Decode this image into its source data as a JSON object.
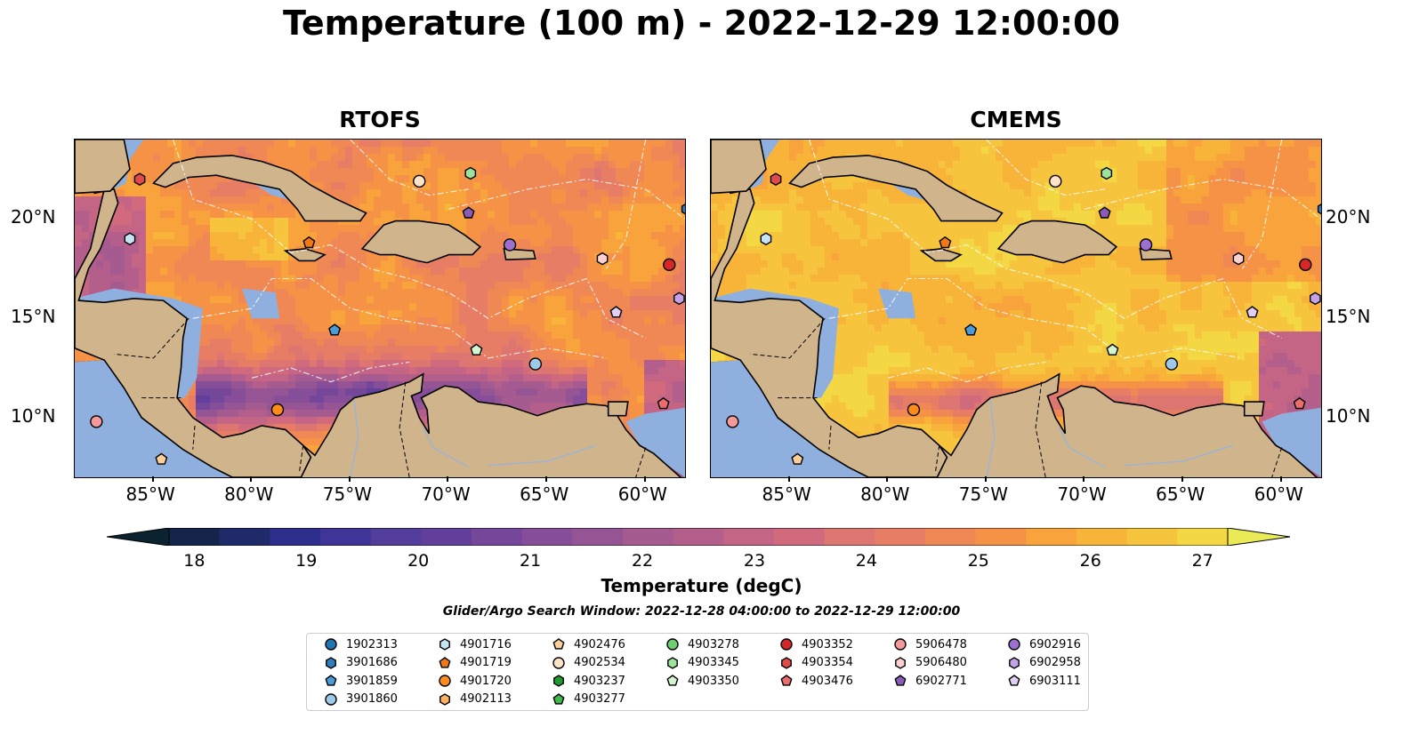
{
  "title": "Temperature (100 m) - 2022-12-29 12:00:00",
  "panels": [
    {
      "title": "RTOFS",
      "model": "rtofs"
    },
    {
      "title": "CMEMS",
      "model": "cmems"
    }
  ],
  "lon_ticks": [
    "85°W",
    "80°W",
    "75°W",
    "70°W",
    "65°W",
    "60°W"
  ],
  "lon_values": [
    -85,
    -80,
    -75,
    -70,
    -65,
    -60
  ],
  "lat_ticks": [
    "20°N",
    "15°N",
    "10°N"
  ],
  "lat_values": [
    20,
    15,
    10
  ],
  "extent": {
    "lon": [
      -89,
      -58
    ],
    "lat": [
      7,
      24
    ]
  },
  "colorbar": {
    "label": "Temperature (degC)",
    "ticks": [
      "18",
      "19",
      "20",
      "21",
      "22",
      "23",
      "24",
      "25",
      "26",
      "27"
    ],
    "min": 18,
    "max": 27,
    "extend": "both",
    "colors": [
      "#0b2231",
      "#14244a",
      "#1f2a6a",
      "#2e2f8d",
      "#3f3598",
      "#523d9c",
      "#623f9b",
      "#74479a",
      "#864e98",
      "#955493",
      "#a55a90",
      "#b45e8b",
      "#c46586",
      "#d16a7d",
      "#dd7571",
      "#e77d65",
      "#f08856",
      "#f59246",
      "#f8a33b",
      "#f8b439",
      "#f6c53d",
      "#f3d843",
      "#eaea56"
    ]
  },
  "search_window": "Glider/Argo Search Window: 2022-12-28 04:00:00 to 2022-12-29 12:00:00",
  "legend": {
    "columns": [
      [
        {
          "id": "1902313",
          "marker": "circle",
          "color": "#1f77b4"
        },
        {
          "id": "3901686",
          "marker": "hexagon",
          "color": "#2f7fc0"
        },
        {
          "id": "3901859",
          "marker": "pentagon",
          "color": "#4a9bd8"
        },
        {
          "id": "3901860",
          "marker": "circle",
          "color": "#9ecae9"
        }
      ],
      [
        {
          "id": "4901716",
          "marker": "hexagon",
          "color": "#c6e4f5"
        },
        {
          "id": "4901719",
          "marker": "pentagon",
          "color": "#f07a18"
        },
        {
          "id": "4901720",
          "marker": "circle",
          "color": "#ff8c1a"
        },
        {
          "id": "4902113",
          "marker": "hexagon",
          "color": "#ffb264"
        }
      ],
      [
        {
          "id": "4902476",
          "marker": "pentagon",
          "color": "#ffcf99"
        },
        {
          "id": "4902534",
          "marker": "circle",
          "color": "#ffe3c6"
        },
        {
          "id": "4903237",
          "marker": "hexagon",
          "color": "#1f9a2f"
        },
        {
          "id": "4903277",
          "marker": "pentagon",
          "color": "#3fb84a"
        }
      ],
      [
        {
          "id": "4903278",
          "marker": "circle",
          "color": "#6fcf6f"
        },
        {
          "id": "4903345",
          "marker": "hexagon",
          "color": "#9be39b"
        },
        {
          "id": "4903350",
          "marker": "pentagon",
          "color": "#d2f7cf"
        }
      ],
      [
        {
          "id": "4903352",
          "marker": "circle",
          "color": "#d62728"
        },
        {
          "id": "4903354",
          "marker": "hexagon",
          "color": "#e04a4a"
        },
        {
          "id": "4903476",
          "marker": "pentagon",
          "color": "#ea6c6c"
        }
      ],
      [
        {
          "id": "5906478",
          "marker": "circle",
          "color": "#f49a9a"
        },
        {
          "id": "5906480",
          "marker": "hexagon",
          "color": "#fbd0d0"
        },
        {
          "id": "6902771",
          "marker": "pentagon",
          "color": "#8a5cb8"
        }
      ],
      [
        {
          "id": "6902916",
          "marker": "circle",
          "color": "#9c6fd0"
        },
        {
          "id": "6902958",
          "marker": "hexagon",
          "color": "#c3a2e8"
        },
        {
          "id": "6903111",
          "marker": "pentagon",
          "color": "#e2cff6"
        }
      ]
    ]
  },
  "floats": [
    {
      "id": "4903354",
      "lon": -85.7,
      "lat": 22.0
    },
    {
      "id": "4901716",
      "lon": -86.2,
      "lat": 19.0
    },
    {
      "id": "5906478",
      "lon": -87.9,
      "lat": 9.8
    },
    {
      "id": "4902476",
      "lon": -84.6,
      "lat": 7.9
    },
    {
      "id": "4901719",
      "lon": -77.1,
      "lat": 18.8
    },
    {
      "id": "3901859",
      "lon": -75.8,
      "lat": 14.4
    },
    {
      "id": "4901720",
      "lon": -78.7,
      "lat": 10.4
    },
    {
      "id": "4902534",
      "lon": -71.5,
      "lat": 21.9
    },
    {
      "id": "4903345",
      "lon": -68.9,
      "lat": 22.3
    },
    {
      "id": "6902771",
      "lon": -69.0,
      "lat": 20.3
    },
    {
      "id": "6902916",
      "lon": -66.9,
      "lat": 18.7
    },
    {
      "id": "4903350",
      "lon": -68.6,
      "lat": 13.4
    },
    {
      "id": "3901860",
      "lon": -65.6,
      "lat": 12.7
    },
    {
      "id": "5906480",
      "lon": -62.2,
      "lat": 18.0
    },
    {
      "id": "6903111",
      "lon": -61.5,
      "lat": 15.3
    },
    {
      "id": "4903352",
      "lon": -58.8,
      "lat": 17.7
    },
    {
      "id": "6902958",
      "lon": -58.3,
      "lat": 16.0
    },
    {
      "id": "3901686",
      "lon": -57.9,
      "lat": 20.5
    },
    {
      "id": "4903476",
      "lon": -59.1,
      "lat": 10.7
    }
  ]
}
